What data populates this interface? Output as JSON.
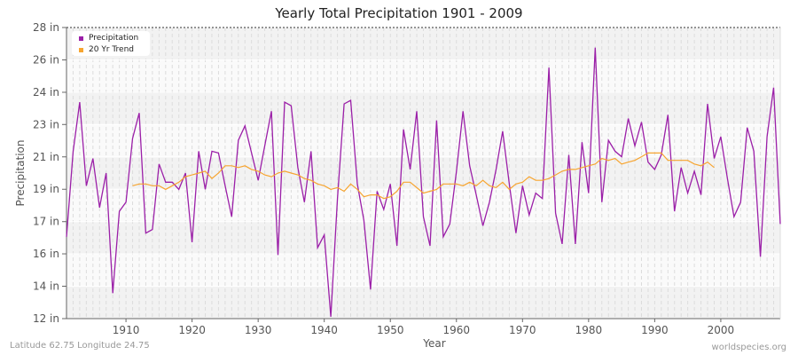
{
  "title": "Yearly Total Precipitation 1901 - 2009",
  "footer": {
    "location": "Latitude 62.75 Longitude 24.75",
    "source": "worldspecies.org"
  },
  "legend": {
    "items": [
      {
        "label": "Precipitation",
        "color": "#9b1fa8"
      },
      {
        "label": "20 Yr Trend",
        "color": "#f7a530"
      }
    ]
  },
  "chart_data": {
    "type": "line",
    "title": "Yearly Total Precipitation 1901 - 2009",
    "xlabel": "Year",
    "ylabel": "Precipitation",
    "xlim": [
      1901,
      2009
    ],
    "ylim": [
      12,
      28
    ],
    "x_ticks": [
      1910,
      1920,
      1930,
      1940,
      1950,
      1960,
      1970,
      1980,
      1990,
      2000
    ],
    "y_ticks": [
      {
        "label": "28 in",
        "pos": 28
      },
      {
        "label": "26 in",
        "pos": 26.22
      },
      {
        "label": "24 in",
        "pos": 24.44
      },
      {
        "label": "23 in",
        "pos": 22.67
      },
      {
        "label": "21 in",
        "pos": 20.89
      },
      {
        "label": "19 in",
        "pos": 19.11
      },
      {
        "label": "17 in",
        "pos": 17.33
      },
      {
        "label": "16 in",
        "pos": 15.56
      },
      {
        "label": "14 in",
        "pos": 13.78
      },
      {
        "label": "12 in",
        "pos": 12
      }
    ],
    "grid": true,
    "legend_position": "top-left",
    "series": [
      {
        "name": "Precipitation",
        "color": "#9b1fa8",
        "x_start": 1901,
        "values": [
          16.5,
          21.2,
          23.9,
          19.3,
          20.8,
          18.1,
          20.0,
          13.4,
          17.9,
          18.4,
          21.9,
          23.3,
          16.7,
          16.9,
          20.5,
          19.5,
          19.5,
          19.1,
          20.0,
          16.2,
          21.2,
          19.1,
          21.2,
          21.1,
          19.3,
          17.6,
          21.8,
          22.6,
          21.1,
          19.6,
          21.5,
          23.4,
          15.5,
          23.9,
          23.7,
          20.3,
          18.4,
          21.2,
          15.9,
          16.6,
          12.1,
          18.6,
          23.8,
          24.0,
          19.4,
          17.4,
          13.6,
          19.0,
          18.0,
          19.4,
          16.0,
          22.4,
          20.2,
          23.4,
          17.6,
          16.0,
          22.9,
          16.5,
          17.2,
          20.1,
          23.4,
          20.4,
          18.8,
          17.1,
          18.4,
          20.2,
          22.3,
          19.4,
          16.7,
          19.3,
          17.7,
          18.9,
          18.6,
          25.8,
          17.8,
          16.1,
          21.0,
          16.1,
          21.7,
          18.9,
          26.9,
          18.4,
          21.8,
          21.2,
          20.9,
          23.0,
          21.5,
          22.8,
          20.6,
          20.2,
          21.0,
          23.2,
          17.9,
          20.3,
          18.9,
          20.1,
          18.8,
          23.8,
          20.8,
          22.0,
          19.7,
          17.6,
          18.4,
          22.5,
          21.2,
          15.4,
          22.0,
          24.7,
          17.2
        ]
      },
      {
        "name": "20 Yr Trend",
        "color": "#f7a530",
        "x_start": 1911,
        "values": [
          19.3,
          19.4,
          19.4,
          19.3,
          19.3,
          19.1,
          19.3,
          19.5,
          19.8,
          19.9,
          20.0,
          20.1,
          19.7,
          20.0,
          20.4,
          20.4,
          20.3,
          20.4,
          20.2,
          20.1,
          19.9,
          19.8,
          20.0,
          20.1,
          20.0,
          19.9,
          19.7,
          19.6,
          19.4,
          19.3,
          19.1,
          19.2,
          19.0,
          19.4,
          19.1,
          18.7,
          18.8,
          18.8,
          18.6,
          18.7,
          19.0,
          19.5,
          19.5,
          19.2,
          18.9,
          19.0,
          19.1,
          19.4,
          19.4,
          19.4,
          19.3,
          19.5,
          19.3,
          19.6,
          19.3,
          19.2,
          19.5,
          19.1,
          19.4,
          19.5,
          19.8,
          19.6,
          19.6,
          19.7,
          19.9,
          20.1,
          20.2,
          20.2,
          20.3,
          20.4,
          20.5,
          20.8,
          20.7,
          20.8,
          20.5,
          20.6,
          20.7,
          20.9,
          21.1,
          21.1,
          21.1,
          20.7,
          20.7,
          20.7,
          20.7,
          20.5,
          20.4,
          20.6,
          20.3
        ]
      }
    ]
  }
}
